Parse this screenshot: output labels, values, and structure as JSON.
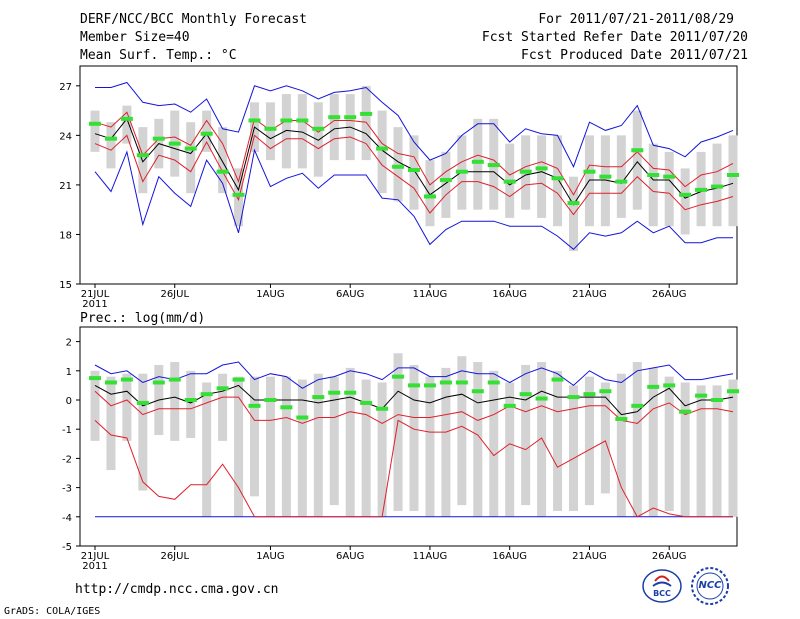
{
  "header": {
    "title": "DERF/NCC/BCC Monthly Forecast",
    "member": "Member Size=40",
    "variable": "Mean Surf. Temp.: °C",
    "period": "For 2011/07/21-2011/08/29",
    "refer": "Fcst Started Refer Date 2011/07/20",
    "produced": "Fcst Produced Date 2011/07/21"
  },
  "footer": {
    "url": "http://cmdp.ncc.cma.gov.cn",
    "grads": "GrADS: COLA/IGES",
    "logo1": "BCC",
    "logo2": "NCC"
  },
  "colors": {
    "box": "#d3d3d3",
    "obs": "#33e033",
    "mean": "#000000",
    "inner": "#e0202c",
    "outer": "#1414dc"
  },
  "chart_data": [
    {
      "type": "line",
      "title": "Mean Surf. Temp.: °C",
      "x_ticks": [
        "21JUL",
        "26JUL",
        "1AUG",
        "6AUG",
        "11AUG",
        "16AUG",
        "21AUG",
        "26AUG"
      ],
      "x_sub": "2011",
      "y_ticks": [
        "27",
        "24",
        "21",
        "18",
        "15"
      ],
      "ylim": [
        15,
        28.2
      ],
      "mean": [
        24.1,
        23.8,
        25.0,
        22.4,
        23.5,
        23.2,
        22.9,
        24.1,
        22.4,
        20.7,
        24.5,
        23.8,
        24.3,
        24.2,
        23.7,
        24.4,
        24.5,
        24.1,
        23.1,
        22.4,
        21.9,
        20.4,
        21.1,
        21.8,
        21.8,
        21.8,
        21.0,
        21.6,
        21.8,
        21.4,
        19.8,
        21.3,
        21.3,
        21.1,
        22.4,
        21.3,
        21.3,
        20.2,
        20.6,
        20.8,
        21.1
      ],
      "red_high": [
        24.8,
        24.5,
        25.4,
        22.8,
        23.8,
        23.9,
        23.4,
        24.9,
        23.5,
        21.2,
        25.0,
        24.3,
        24.9,
        24.9,
        24.2,
        24.9,
        24.9,
        24.8,
        23.5,
        22.9,
        22.7,
        21.0,
        21.8,
        22.4,
        22.8,
        22.5,
        21.6,
        22.1,
        22.4,
        22.0,
        20.4,
        22.2,
        22.1,
        22.1,
        23.0,
        22.0,
        21.9,
        20.9,
        21.6,
        21.8,
        22.3
      ],
      "red_low": [
        23.5,
        23.1,
        24.0,
        21.2,
        22.8,
        22.5,
        21.8,
        23.6,
        21.8,
        20.1,
        24.0,
        23.2,
        23.8,
        23.8,
        23.2,
        23.8,
        23.9,
        23.5,
        22.2,
        21.5,
        20.8,
        19.3,
        20.4,
        21.2,
        21.2,
        20.9,
        20.3,
        21.0,
        21.1,
        20.5,
        19.2,
        20.5,
        20.5,
        20.5,
        21.5,
        20.6,
        20.5,
        19.5,
        19.8,
        20.0,
        20.3
      ],
      "blue_high": [
        26.9,
        26.9,
        27.2,
        26.0,
        25.8,
        25.9,
        25.4,
        26.2,
        24.4,
        24.2,
        27.0,
        26.7,
        27.0,
        26.7,
        26.2,
        26.6,
        26.7,
        26.9,
        26.0,
        25.2,
        23.6,
        22.5,
        22.9,
        24.0,
        24.7,
        24.7,
        23.6,
        24.4,
        24.1,
        24.0,
        22.1,
        24.8,
        24.3,
        24.6,
        25.8,
        23.4,
        23.2,
        22.7,
        23.6,
        23.9,
        24.3
      ],
      "blue_low": [
        21.8,
        20.6,
        23.0,
        18.6,
        21.5,
        20.5,
        19.7,
        22.5,
        21.1,
        18.1,
        23.1,
        20.9,
        21.4,
        21.7,
        20.8,
        21.6,
        21.6,
        21.6,
        20.2,
        20.1,
        19.1,
        17.4,
        18.3,
        18.8,
        18.8,
        18.8,
        18.5,
        18.5,
        18.5,
        17.9,
        17.1,
        18.1,
        17.9,
        18.1,
        18.8,
        18.1,
        18.5,
        17.5,
        17.5,
        17.8,
        17.8
      ],
      "box_high": [
        25.5,
        24.8,
        25.8,
        24.5,
        25.0,
        25.5,
        24.8,
        25.5,
        24.5,
        22.0,
        26.0,
        26.0,
        26.5,
        26.5,
        26.0,
        26.5,
        26.5,
        27.0,
        25.5,
        24.5,
        24.0,
        22.5,
        23.0,
        24.0,
        25.0,
        25.0,
        23.5,
        24.0,
        24.0,
        24.0,
        21.5,
        24.0,
        24.0,
        24.0,
        25.5,
        23.5,
        23.0,
        22.0,
        23.0,
        23.5,
        24.0
      ],
      "box_low": [
        23.0,
        22.0,
        23.5,
        20.5,
        22.0,
        21.5,
        20.5,
        23.0,
        20.5,
        18.5,
        23.0,
        22.5,
        22.0,
        22.0,
        21.5,
        22.5,
        22.5,
        22.5,
        20.5,
        20.0,
        19.5,
        18.5,
        19.0,
        19.5,
        19.5,
        19.5,
        19.0,
        19.5,
        19.0,
        18.5,
        17.0,
        18.5,
        18.5,
        19.0,
        19.5,
        18.5,
        18.5,
        18.0,
        18.5,
        18.5,
        18.5
      ],
      "obs": [
        24.7,
        23.8,
        25.0,
        22.8,
        23.8,
        23.5,
        23.2,
        24.1,
        21.8,
        20.4,
        24.9,
        24.4,
        24.9,
        24.9,
        24.4,
        25.1,
        25.1,
        25.3,
        23.2,
        22.1,
        21.9,
        20.3,
        21.3,
        21.8,
        22.4,
        22.2,
        21.2,
        21.8,
        22.0,
        21.4,
        19.9,
        21.8,
        21.5,
        21.2,
        23.1,
        21.6,
        21.5,
        20.4,
        20.7,
        20.9,
        21.6
      ]
    },
    {
      "type": "line",
      "title": "Prec.: log(mm/d)",
      "x_ticks": [
        "21JUL",
        "26JUL",
        "1AUG",
        "6AUG",
        "11AUG",
        "16AUG",
        "21AUG",
        "26AUG"
      ],
      "x_sub": "2011",
      "y_ticks": [
        "2",
        "1",
        "0",
        "-1",
        "-2",
        "-3",
        "-4",
        "-5"
      ],
      "ylim": [
        -5,
        2.5
      ],
      "mean": [
        0.5,
        0.2,
        0.3,
        -0.2,
        0,
        0.1,
        -0.1,
        0.2,
        0.3,
        0.5,
        0,
        0,
        0,
        0,
        -0.1,
        0,
        0.1,
        -0.1,
        -0.3,
        0.3,
        0,
        -0.1,
        0.1,
        0.2,
        -0.1,
        0,
        0.1,
        0,
        0.3,
        0.1,
        0.1,
        0.1,
        0.1,
        -0.5,
        -0.4,
        0.1,
        0.4,
        -0.2,
        0,
        0,
        0.1
      ],
      "red_high": [
        0.3,
        -0.2,
        0,
        -0.5,
        -0.3,
        -0.3,
        -0.3,
        -0.1,
        0.1,
        0.1,
        -0.7,
        -0.7,
        -0.6,
        -0.8,
        -0.6,
        -0.6,
        -0.4,
        -0.5,
        -0.8,
        -0.5,
        -0.6,
        -0.6,
        -0.5,
        -0.4,
        -0.7,
        -0.5,
        -0.2,
        -0.4,
        -0.2,
        -0.4,
        -0.3,
        -0.2,
        -0.2,
        -0.7,
        -0.8,
        -0.3,
        -0.1,
        -0.5,
        -0.3,
        -0.3,
        -0.4
      ],
      "red_low": [
        -0.7,
        -1.2,
        -1.3,
        -2.8,
        -3.3,
        -3.4,
        -2.9,
        -2.9,
        -2.2,
        -3.0,
        -4,
        -4,
        -4,
        -4,
        -4,
        -4,
        -4,
        -4,
        -4,
        -0.7,
        -1.0,
        -1.1,
        -1.1,
        -0.9,
        -1.2,
        -1.9,
        -1.5,
        -1.7,
        -1.3,
        -2.3,
        -2.0,
        -1.7,
        -1.4,
        -3.0,
        -4,
        -3.7,
        -3.9,
        -4,
        -4,
        -4,
        -4
      ],
      "blue_high": [
        1.2,
        0.9,
        1.0,
        0.6,
        0.8,
        0.7,
        0.9,
        0.9,
        1.2,
        1.3,
        0.7,
        0.9,
        0.8,
        0.4,
        0.7,
        0.8,
        1.0,
        0.9,
        0.7,
        1.1,
        1.1,
        0.8,
        0.8,
        1.0,
        0.9,
        0.9,
        0.6,
        0.9,
        1.1,
        0.9,
        0.5,
        1.0,
        0.7,
        0.6,
        1.0,
        1.1,
        1.2,
        0.7,
        0.7,
        0.8,
        0.9
      ],
      "blue_low": [
        -4,
        -4,
        -4,
        -4,
        -4,
        -4,
        -4,
        -4,
        -4,
        -4,
        -4,
        -4,
        -4,
        -4,
        -4,
        -4,
        -4,
        -4,
        -4,
        -4,
        -4,
        -4,
        -4,
        -4,
        -4,
        -4,
        -4,
        -4,
        -4,
        -4,
        -4,
        -4,
        -4,
        -4,
        -4,
        -4,
        -4,
        -4,
        -4,
        -4,
        -4
      ],
      "box_high": [
        1.0,
        0.8,
        0.9,
        0.9,
        1.2,
        1.3,
        1.0,
        0.6,
        0.9,
        0.8,
        0.8,
        0.8,
        0.8,
        0.7,
        0.9,
        0.8,
        1.1,
        0.7,
        0.6,
        1.6,
        1.2,
        0.8,
        1.1,
        1.5,
        1.3,
        1.0,
        0.6,
        1.2,
        1.3,
        1.0,
        0.5,
        0.8,
        0.6,
        0.9,
        1.3,
        1.1,
        0.8,
        0.6,
        0.5,
        0.5,
        0.7
      ],
      "box_low": [
        -1.4,
        -2.4,
        -1.4,
        -3.1,
        -1.2,
        -1.4,
        -1.3,
        -4.0,
        -1.4,
        -4.0,
        -3.3,
        -4.0,
        -4.0,
        -4.0,
        -4.0,
        -3.6,
        -4.0,
        -4.0,
        -4.0,
        -3.8,
        -3.8,
        -4.0,
        -4.0,
        -3.6,
        -4.0,
        -4.0,
        -4.0,
        -3.6,
        -4.0,
        -3.8,
        -3.8,
        -3.6,
        -3.2,
        -4.0,
        -4.0,
        -4.0,
        -3.8,
        -4.0,
        -4.0,
        -4.0,
        -4.0
      ],
      "obs": [
        0.75,
        0.6,
        0.7,
        -0.1,
        0.6,
        0.7,
        0,
        0.2,
        0.4,
        0.7,
        -0.2,
        0,
        -0.25,
        -0.6,
        0.1,
        0.25,
        0.25,
        -0.1,
        -0.3,
        0.8,
        0.5,
        0.5,
        0.6,
        0.6,
        0.3,
        0.6,
        -0.2,
        0.2,
        0.05,
        0.7,
        0.1,
        0.2,
        0.3,
        -0.65,
        -0.2,
        0.45,
        0.5,
        -0.4,
        0.15,
        0,
        0.3
      ]
    }
  ]
}
